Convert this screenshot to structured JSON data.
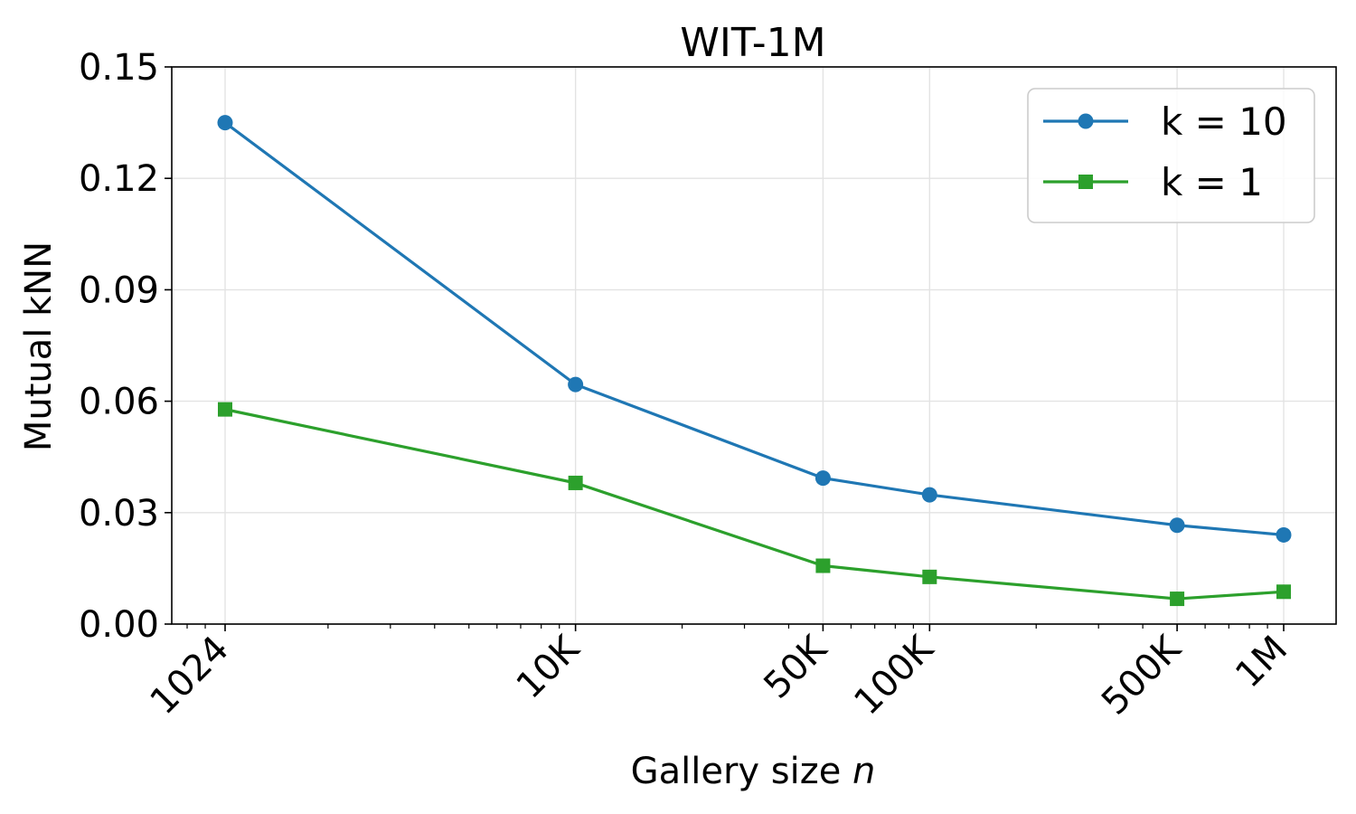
{
  "chart_data": {
    "type": "line",
    "title": "WIT-1M",
    "xlabel_main": "Gallery size ",
    "xlabel_var": "n",
    "ylabel": "Mutual kNN",
    "x_scale": "log",
    "x": [
      1024,
      10000,
      50000,
      100000,
      500000,
      1000000
    ],
    "x_tick_labels": [
      "1024",
      "10K",
      "50K",
      "100K",
      "500K",
      "1M"
    ],
    "ylim": [
      0.0,
      0.15
    ],
    "y_ticks": [
      0.0,
      0.03,
      0.06,
      0.09,
      0.12,
      0.15
    ],
    "y_tick_labels": [
      "0.00",
      "0.03",
      "0.06",
      "0.09",
      "0.12",
      "0.15"
    ],
    "grid": true,
    "legend_position": "top-right",
    "series": [
      {
        "name": "k = 10",
        "color": "#1f77b4",
        "marker": "circle",
        "values": [
          0.135,
          0.0645,
          0.0393,
          0.0348,
          0.0266,
          0.024
        ]
      },
      {
        "name": "k = 1",
        "color": "#2ca02c",
        "marker": "square",
        "values": [
          0.0578,
          0.038,
          0.0157,
          0.0127,
          0.0068,
          0.0087
        ]
      }
    ]
  }
}
